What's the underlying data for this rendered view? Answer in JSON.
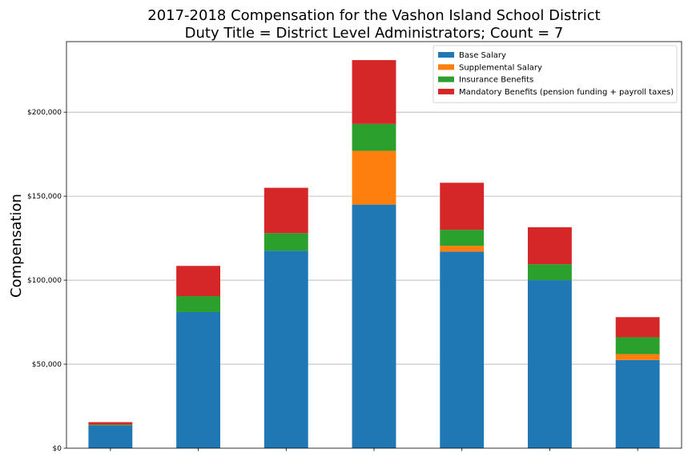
{
  "chart_data": {
    "type": "bar",
    "stacked": true,
    "title": "2017-2018 Compensation for the Vashon Island School District",
    "subtitle": "Duty Title = District Level Administrators; Count = 7",
    "xlabel": "",
    "ylabel": "Compensation",
    "ylim": [
      0,
      242000
    ],
    "yticks": [
      0,
      50000,
      100000,
      150000,
      200000
    ],
    "ytick_labels": [
      "$0",
      "$50,000",
      "$100,000",
      "$150,000",
      "$200,000"
    ],
    "grid": "horizontal",
    "legend_position": "top-right",
    "categories": [
      "",
      "",
      "",
      "",
      "",
      "",
      ""
    ],
    "series": [
      {
        "name": "Base Salary",
        "color": "#1f77b4",
        "values": [
          13500,
          81000,
          117500,
          145000,
          117000,
          100000,
          52500
        ]
      },
      {
        "name": "Supplemental Salary",
        "color": "#ff7f0e",
        "values": [
          0,
          0,
          0,
          32000,
          3500,
          0,
          3500
        ]
      },
      {
        "name": "Insurance Benefits",
        "color": "#2ca02c",
        "values": [
          500,
          9500,
          10500,
          16000,
          9500,
          9500,
          10000
        ]
      },
      {
        "name": "Mandatory Benefits (pension funding + payroll taxes)",
        "color": "#d62728",
        "values": [
          1500,
          18000,
          27000,
          38000,
          28000,
          22000,
          12000
        ]
      }
    ]
  }
}
